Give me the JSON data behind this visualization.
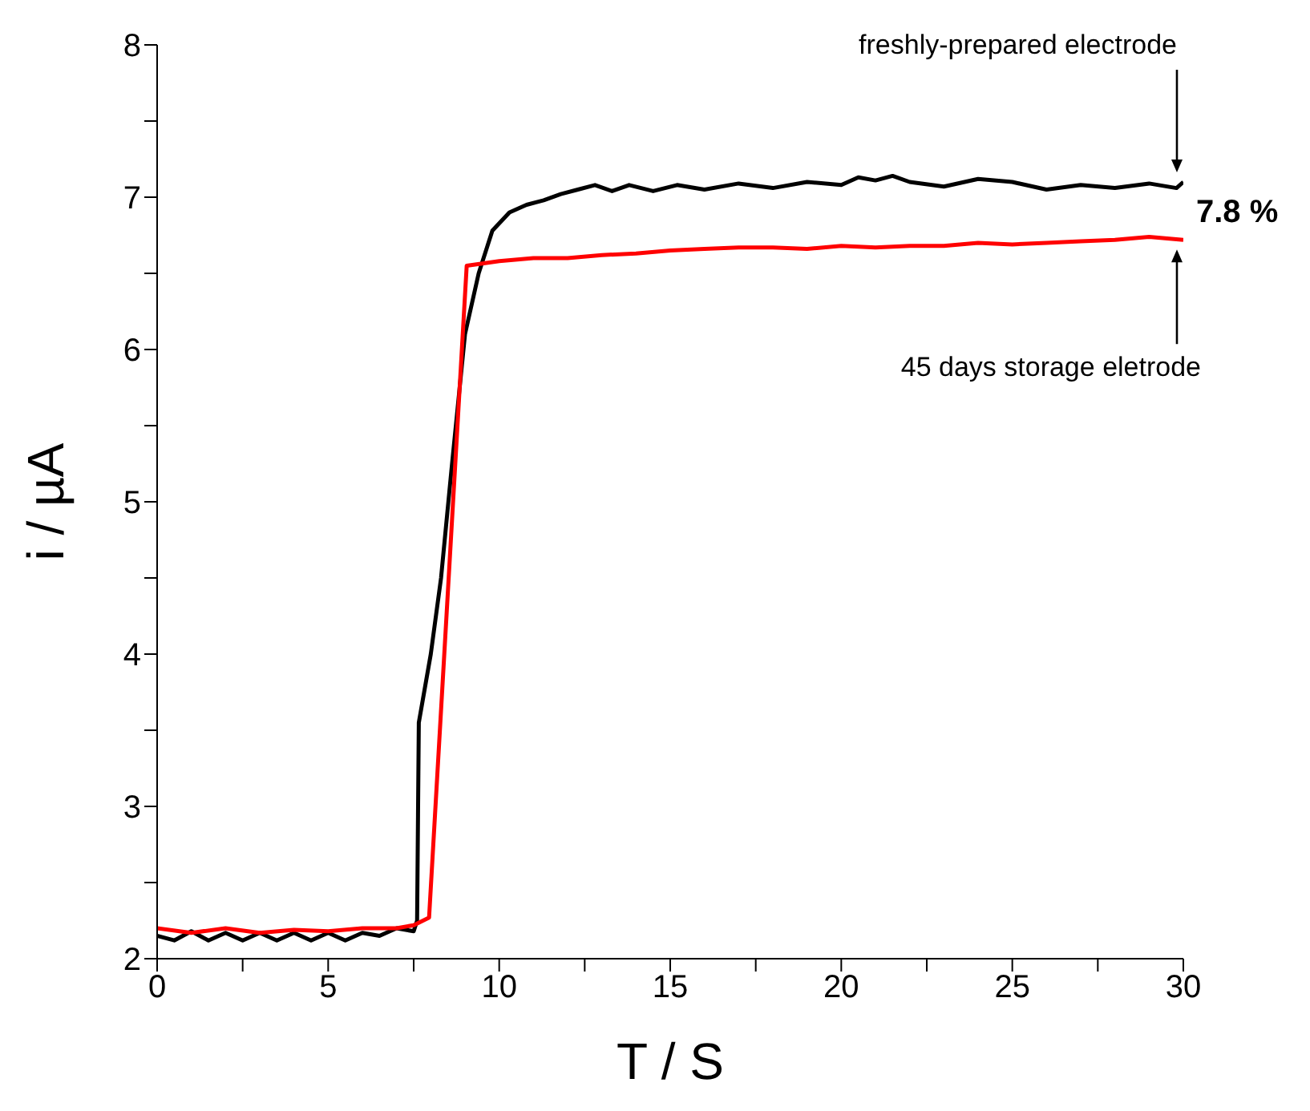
{
  "chart_data": {
    "type": "line",
    "xlabel": "T / S",
    "ylabel": "i / µA",
    "xlim": [
      0,
      30
    ],
    "xticks": [
      0,
      {
        "value": 2.5,
        "label": null
      },
      5,
      {
        "value": 7.5,
        "label": null
      },
      10,
      {
        "value": 12.5,
        "label": null
      },
      15,
      {
        "value": 17.5,
        "label": null
      },
      20,
      {
        "value": 22.5,
        "label": null
      },
      25,
      {
        "value": 27.5,
        "label": null
      },
      30
    ],
    "ylim": [
      2,
      8
    ],
    "yticks": [
      2,
      {
        "value": 2.5,
        "label": null
      },
      3,
      {
        "value": 3.5,
        "label": null
      },
      4,
      {
        "value": 4.5,
        "label": null
      },
      5,
      {
        "value": 5.5,
        "label": null
      },
      6,
      {
        "value": 6.5,
        "label": null
      },
      7,
      {
        "value": 7.5,
        "label": null
      },
      8
    ],
    "marker": "none",
    "line_style": "solid",
    "series": [
      {
        "color": "#000000",
        "x": [
          0,
          0.5,
          1,
          1.5,
          2,
          2.5,
          3,
          3.5,
          4,
          4.5,
          5,
          5.5,
          6,
          6.5,
          7,
          7.5,
          7.6,
          7.65,
          8.0,
          8.3,
          8.6,
          9.0,
          9.4,
          9.8,
          10.3,
          10.8,
          11.3,
          11.8,
          12.3,
          12.8,
          13.3,
          13.8,
          14.5,
          15.2,
          16,
          17,
          18,
          19,
          20,
          20.5,
          21,
          21.5,
          22,
          23,
          24,
          25,
          26,
          27,
          28,
          29,
          29.8,
          30
        ],
        "values": [
          2.15,
          2.12,
          2.18,
          2.12,
          2.17,
          2.12,
          2.17,
          2.12,
          2.17,
          2.12,
          2.17,
          2.12,
          2.17,
          2.15,
          2.2,
          2.18,
          2.25,
          3.55,
          4.0,
          4.5,
          5.2,
          6.1,
          6.5,
          6.78,
          6.9,
          6.95,
          6.98,
          7.02,
          7.05,
          7.08,
          7.04,
          7.08,
          7.04,
          7.08,
          7.05,
          7.09,
          7.06,
          7.1,
          7.08,
          7.13,
          7.11,
          7.14,
          7.1,
          7.07,
          7.12,
          7.1,
          7.05,
          7.08,
          7.06,
          7.09,
          7.06,
          7.1
        ]
      },
      {
        "color": "#ff0000",
        "x": [
          0,
          1,
          2,
          3,
          4,
          5,
          6,
          7,
          7.5,
          7.95,
          9.05,
          10,
          11,
          12,
          13,
          14,
          15,
          16,
          17,
          18,
          19,
          20,
          21,
          22,
          23,
          24,
          25,
          26,
          27,
          28,
          29,
          30
        ],
        "values": [
          2.2,
          2.17,
          2.2,
          2.17,
          2.19,
          2.18,
          2.2,
          2.2,
          2.22,
          2.27,
          6.55,
          6.58,
          6.6,
          6.6,
          6.62,
          6.63,
          6.65,
          6.66,
          6.67,
          6.67,
          6.66,
          6.68,
          6.67,
          6.68,
          6.68,
          6.7,
          6.69,
          6.7,
          6.71,
          6.72,
          6.74,
          6.72
        ]
      }
    ],
    "annotations": [
      "freshly-prepared electrode",
      "45 days storage eletrode",
      "7.8 %"
    ]
  }
}
